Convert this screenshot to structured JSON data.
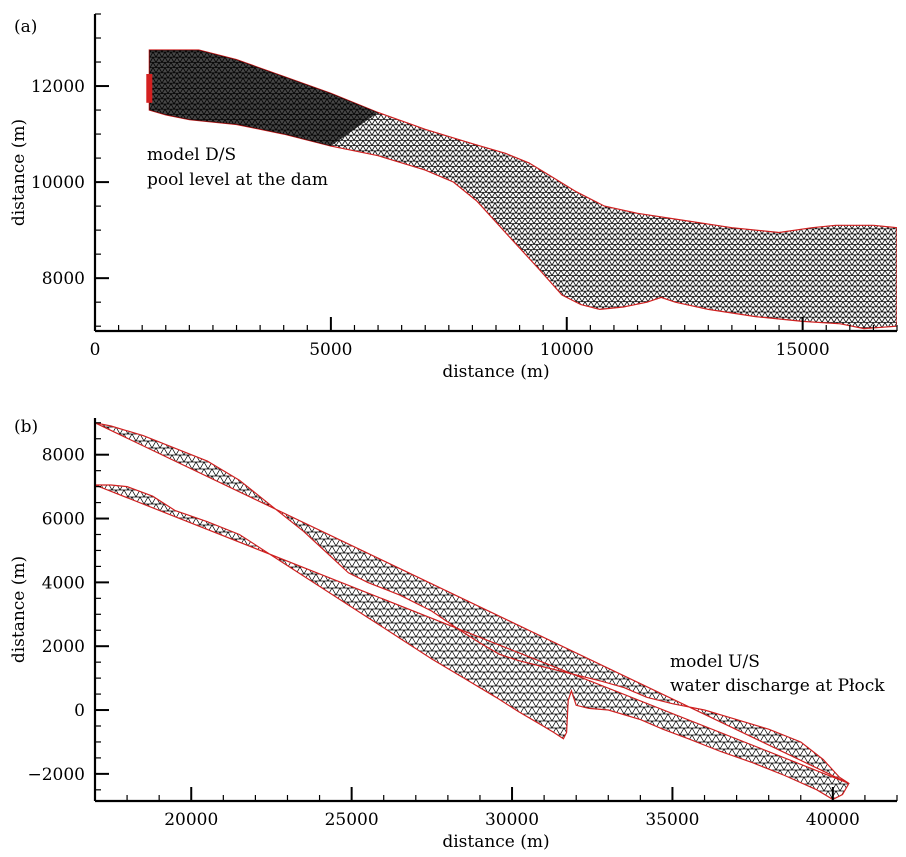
{
  "chart_data": [
    {
      "type": "scatter",
      "panel_label": "(a)",
      "xlabel": "distance (m)",
      "ylabel": "distance (m)",
      "xlim": [
        0,
        17000
      ],
      "ylim": [
        6900,
        13500
      ],
      "xticks": [
        0,
        5000,
        10000,
        15000
      ],
      "yticks": [
        8000,
        10000,
        12000
      ],
      "grid": false,
      "annotation": [
        "model D/S",
        "pool level at the dam"
      ],
      "boundary_marker": {
        "name": "pool level boundary",
        "color": "#d42020",
        "x": 1150,
        "y_range": [
          11650,
          12250
        ]
      },
      "mesh_color": "#000000",
      "outline_color": "#d02020",
      "outline": {
        "upper": [
          [
            1150,
            12750
          ],
          [
            2200,
            12750
          ],
          [
            3000,
            12550
          ],
          [
            4000,
            12200
          ],
          [
            5000,
            11850
          ],
          [
            6000,
            11450
          ],
          [
            7000,
            11100
          ],
          [
            8000,
            10800
          ],
          [
            8700,
            10600
          ],
          [
            9200,
            10400
          ],
          [
            9700,
            10100
          ],
          [
            10200,
            9800
          ],
          [
            10800,
            9500
          ],
          [
            11500,
            9350
          ],
          [
            12500,
            9200
          ],
          [
            13500,
            9050
          ],
          [
            14500,
            8950
          ],
          [
            15200,
            9050
          ],
          [
            15700,
            9100
          ],
          [
            16500,
            9100
          ],
          [
            17000,
            9050
          ]
        ],
        "lower": [
          [
            1150,
            11500
          ],
          [
            1500,
            11400
          ],
          [
            2000,
            11300
          ],
          [
            3000,
            11200
          ],
          [
            4000,
            11000
          ],
          [
            5000,
            10750
          ],
          [
            6000,
            10550
          ],
          [
            7000,
            10250
          ],
          [
            7600,
            10000
          ],
          [
            8100,
            9600
          ],
          [
            8700,
            8950
          ],
          [
            9400,
            8200
          ],
          [
            9900,
            7650
          ],
          [
            10300,
            7450
          ],
          [
            10700,
            7350
          ],
          [
            11200,
            7400
          ],
          [
            11700,
            7500
          ],
          [
            12000,
            7600
          ],
          [
            12300,
            7500
          ],
          [
            13000,
            7350
          ],
          [
            14000,
            7200
          ],
          [
            15000,
            7100
          ],
          [
            15800,
            7050
          ],
          [
            16300,
            6950
          ],
          [
            17000,
            7000
          ]
        ]
      }
    },
    {
      "type": "scatter",
      "panel_label": "(b)",
      "xlabel": "distance (m)",
      "ylabel": "distance (m)",
      "xlim": [
        17000,
        42000
      ],
      "ylim": [
        -2850,
        9150
      ],
      "xticks": [
        20000,
        25000,
        30000,
        35000,
        40000
      ],
      "yticks": [
        -2000,
        0,
        2000,
        4000,
        6000,
        8000
      ],
      "grid": false,
      "annotation": [
        "model U/S",
        "water discharge at Płock"
      ],
      "mesh_color": "#000000",
      "outline_color": "#d02020",
      "outline": {
        "upper": [
          [
            17000,
            9000
          ],
          [
            17500,
            8900
          ],
          [
            18500,
            8600
          ],
          [
            19500,
            8200
          ],
          [
            20500,
            7800
          ],
          [
            21500,
            7200
          ],
          [
            22500,
            6400
          ],
          [
            23500,
            5600
          ],
          [
            24200,
            4950
          ],
          [
            24900,
            4300
          ],
          [
            25500,
            4000
          ],
          [
            26500,
            3600
          ],
          [
            27500,
            3100
          ],
          [
            28300,
            2550
          ],
          [
            29000,
            2100
          ],
          [
            29600,
            1750
          ],
          [
            30200,
            1550
          ],
          [
            31000,
            1350
          ],
          [
            32000,
            1100
          ],
          [
            32800,
            900
          ],
          [
            33500,
            700
          ],
          [
            34200,
            400
          ],
          [
            35000,
            200
          ],
          [
            36000,
            0
          ],
          [
            37000,
            -300
          ],
          [
            38000,
            -600
          ],
          [
            39000,
            -1000
          ],
          [
            39700,
            -1550
          ],
          [
            40200,
            -2100
          ],
          [
            40500,
            -2300
          ]
        ],
        "lower": [
          [
            40500,
            -2300
          ],
          [
            40300,
            -2650
          ],
          [
            40000,
            -2800
          ],
          [
            39500,
            -2500
          ],
          [
            38500,
            -2050
          ],
          [
            37500,
            -1650
          ],
          [
            36500,
            -1300
          ],
          [
            35500,
            -900
          ],
          [
            34700,
            -600
          ],
          [
            34000,
            -300
          ],
          [
            33000,
            0
          ],
          [
            32400,
            50
          ],
          [
            32000,
            150
          ],
          [
            31850,
            600
          ],
          [
            31750,
            300
          ],
          [
            31700,
            -700
          ],
          [
            31600,
            -900
          ],
          [
            31300,
            -700
          ],
          [
            30800,
            -400
          ],
          [
            30200,
            -50
          ],
          [
            29500,
            400
          ],
          [
            28500,
            1000
          ],
          [
            27500,
            1600
          ],
          [
            26500,
            2250
          ],
          [
            25500,
            2900
          ],
          [
            24500,
            3550
          ],
          [
            23500,
            4200
          ],
          [
            22500,
            4850
          ],
          [
            21500,
            5500
          ],
          [
            20500,
            5900
          ],
          [
            19500,
            6250
          ],
          [
            18800,
            6700
          ],
          [
            18000,
            7000
          ],
          [
            17500,
            7050
          ],
          [
            17000,
            7050
          ]
        ]
      }
    }
  ]
}
